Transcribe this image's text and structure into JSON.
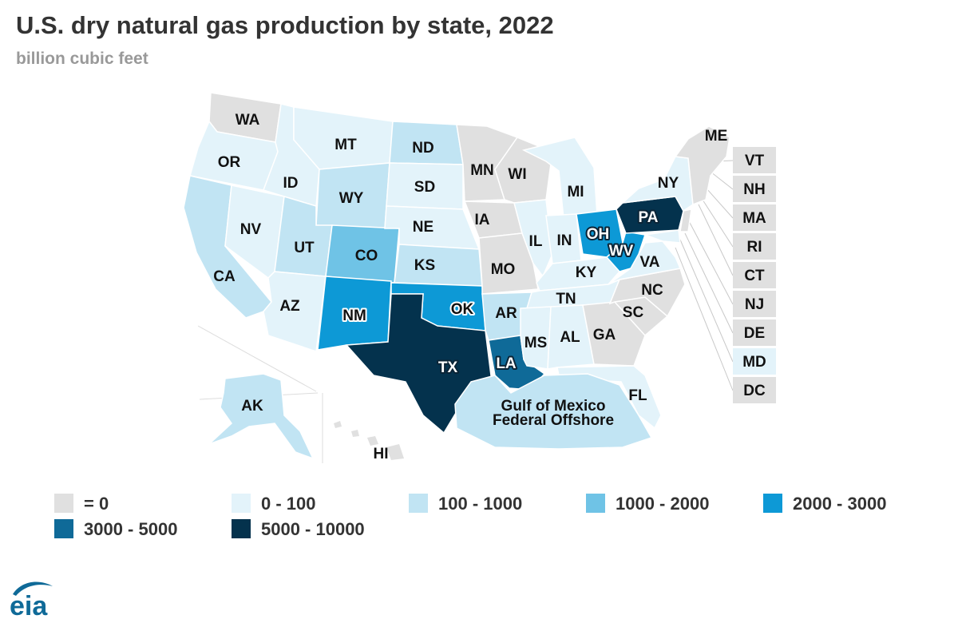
{
  "title": "U.S. dry natural gas production by state, 2022",
  "subtitle": "billion cubic feet",
  "colors": {
    "zero": "#e0e0e0",
    "c0_100": "#e3f3fa",
    "c100_1000": "#c1e4f3",
    "c1000_2000": "#6fc3e6",
    "c2000_3000": "#0d99d6",
    "c3000_5000": "#0f6a98",
    "c5000_10000": "#04324d"
  },
  "legend": [
    {
      "label": "= 0",
      "color": "#e0e0e0"
    },
    {
      "label": "0 - 100",
      "color": "#e3f3fa"
    },
    {
      "label": "100 - 1000",
      "color": "#c1e4f3"
    },
    {
      "label": "1000 - 2000",
      "color": "#6fc3e6"
    },
    {
      "label": "2000 - 3000",
      "color": "#0d99d6"
    },
    {
      "label": "3000 - 5000",
      "color": "#0f6a98"
    },
    {
      "label": "5000 - 10000",
      "color": "#04324d"
    }
  ],
  "map_labels": {
    "WA": "WA",
    "OR": "OR",
    "CA": "CA",
    "NV": "NV",
    "ID": "ID",
    "MT": "MT",
    "WY": "WY",
    "UT": "UT",
    "AZ": "AZ",
    "CO": "CO",
    "NM": "NM",
    "ND": "ND",
    "SD": "SD",
    "NE": "NE",
    "KS": "KS",
    "OK": "OK",
    "TX": "TX",
    "MN": "MN",
    "IA": "IA",
    "MO": "MO",
    "AR": "AR",
    "LA": "LA",
    "WI": "WI",
    "IL": "IL",
    "MI": "MI",
    "IN": "IN",
    "OH": "OH",
    "KY": "KY",
    "TN": "TN",
    "MS": "MS",
    "AL": "AL",
    "GA": "GA",
    "FL": "FL",
    "SC": "SC",
    "NC": "NC",
    "VA": "VA",
    "WV": "WV",
    "PA": "PA",
    "NY": "NY",
    "ME": "ME",
    "AK": "AK",
    "HI": "HI",
    "VT": "VT",
    "NH": "NH",
    "MA": "MA",
    "RI": "RI",
    "CT": "CT",
    "NJ": "NJ",
    "DE": "DE",
    "MD": "MD",
    "DC": "DC",
    "gulf_line1": "Gulf of Mexico",
    "gulf_line2": "Federal Offshore"
  },
  "state_categories": {
    "WA": "zero",
    "OR": "c0_100",
    "CA": "c100_1000",
    "NV": "c0_100",
    "ID": "c0_100",
    "MT": "c0_100",
    "WY": "c100_1000",
    "UT": "c100_1000",
    "AZ": "c0_100",
    "CO": "c1000_2000",
    "NM": "c2000_3000",
    "ND": "c100_1000",
    "SD": "c0_100",
    "NE": "c0_100",
    "KS": "c100_1000",
    "OK": "c2000_3000",
    "TX": "c5000_10000",
    "MN": "zero",
    "IA": "zero",
    "MO": "zero",
    "AR": "c100_1000",
    "LA": "c3000_5000",
    "WI": "zero",
    "IL": "c0_100",
    "MI": "c0_100",
    "IN": "c0_100",
    "OH": "c2000_3000",
    "KY": "c0_100",
    "TN": "c0_100",
    "MS": "c0_100",
    "AL": "c0_100",
    "GA": "zero",
    "FL": "c0_100",
    "SC": "zero",
    "NC": "zero",
    "VA": "c0_100",
    "WV": "c2000_3000",
    "PA": "c5000_10000",
    "NY": "c0_100",
    "NE_REGION": "zero",
    "GULF": "c100_1000",
    "AK": "c100_1000",
    "HI": "zero",
    "VT": "zero",
    "NH": "zero",
    "MA": "zero",
    "RI": "zero",
    "CT": "zero",
    "NJ": "zero",
    "DE": "zero",
    "MD": "c0_100",
    "DC": "zero"
  },
  "logo_text": "eia"
}
